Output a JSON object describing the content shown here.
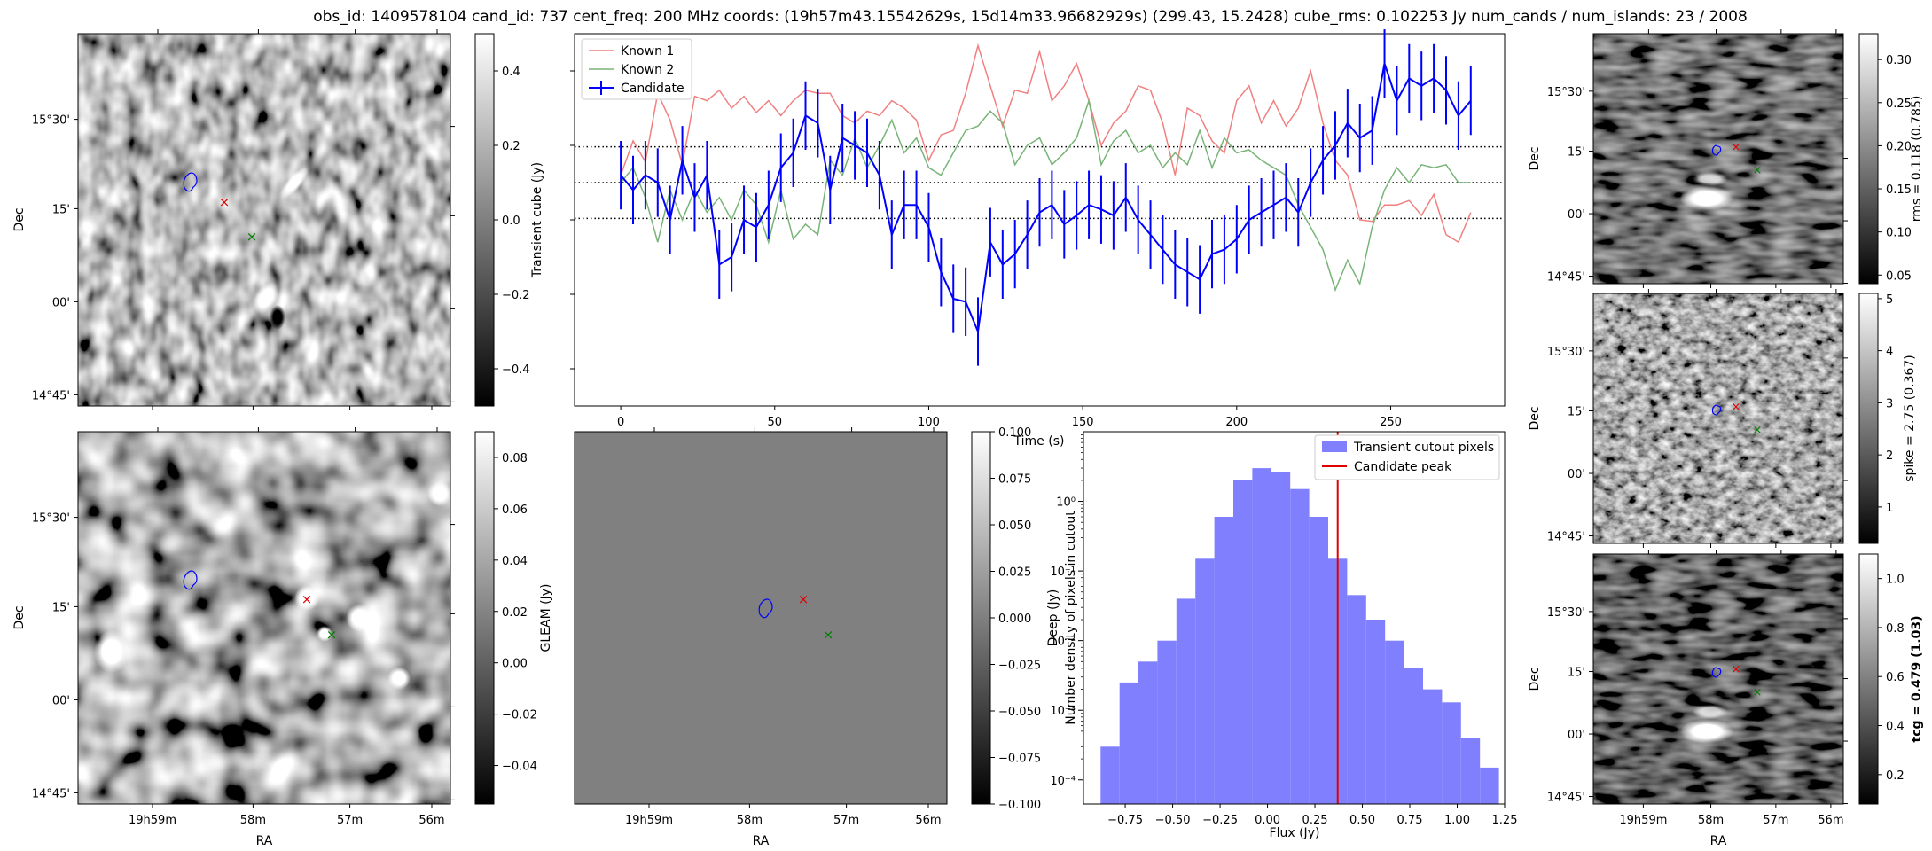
{
  "title": "obs_id: 1409578104 cand_id: 737 cent_freq: 200 MHz coords: (19h57m43.15542629s, 15d14m33.96682929s) (299.43, 15.2428) cube_rms: 0.102253 Jy num_cands / num_islands: 23 / 2008",
  "colors": {
    "known1": "#f08080",
    "known2": "#78b478",
    "candidate": "#0000ff",
    "hist": "#8080ff",
    "peak": "#e00000",
    "red_marker": "#e00000",
    "green_marker": "#008000",
    "blue_contour": "#0000ff"
  },
  "image_axes": {
    "dec_ticks": [
      "15°30'",
      "15'",
      "00'",
      "14°45'"
    ],
    "ra_ticks": [
      "19h59m",
      "58m",
      "57m",
      "56m"
    ],
    "xlabel": "RA",
    "ylabel": "Dec"
  },
  "panels": {
    "transient": {
      "colorbar_label": "Transient cube (Jy)",
      "colorbar_ticks": [
        "0.4",
        "0.2",
        "0.0",
        "−0.2",
        "−0.4"
      ],
      "colorbar_range": [
        -0.5,
        0.5
      ]
    },
    "gleam": {
      "colorbar_label": "GLEAM (Jy)",
      "colorbar_ticks": [
        "0.08",
        "0.06",
        "0.04",
        "0.02",
        "0.00",
        "−0.02",
        "−0.04"
      ],
      "colorbar_range": [
        -0.055,
        0.09
      ]
    },
    "deep": {
      "colorbar_label": "Deep (Jy)",
      "colorbar_ticks": [
        "0.100",
        "0.075",
        "0.050",
        "0.025",
        "0.000",
        "−0.025",
        "−0.050",
        "−0.075",
        "−0.100"
      ],
      "colorbar_range": [
        -0.1,
        0.1
      ]
    },
    "rms": {
      "colorbar_label": "rms = 0.118 (0.785)",
      "colorbar_ticks": [
        "0.30",
        "0.25",
        "0.20",
        "0.15",
        "0.10",
        "0.05"
      ],
      "colorbar_range": [
        0.04,
        0.33
      ]
    },
    "spike": {
      "colorbar_label": "spike = 2.75 (0.367)",
      "colorbar_ticks": [
        "5",
        "4",
        "3",
        "2",
        "1"
      ],
      "colorbar_range": [
        0.3,
        5.1
      ]
    },
    "tcg": {
      "colorbar_label": "tcg = 0.479 (1.03)",
      "colorbar_ticks": [
        "1.0",
        "0.8",
        "0.6",
        "0.4",
        "0.2"
      ],
      "colorbar_range": [
        0.08,
        1.1
      ]
    }
  },
  "chart_data": [
    {
      "type": "line",
      "xlabel": "Time (s)",
      "x_ticks": [
        "0",
        "50",
        "100",
        "150",
        "200",
        "250"
      ],
      "xlim": [
        -15,
        287
      ],
      "ylim": [
        -1.5,
        1.0
      ],
      "legend": [
        "Known 1",
        "Known 2",
        "Candidate"
      ],
      "legend_position": "top-left",
      "hlines": [
        0.24,
        0.0,
        -0.24
      ],
      "x": [
        0,
        4,
        8,
        12,
        16,
        20,
        24,
        28,
        32,
        36,
        40,
        44,
        48,
        52,
        56,
        60,
        64,
        68,
        72,
        76,
        80,
        84,
        88,
        92,
        96,
        100,
        104,
        108,
        112,
        116,
        120,
        124,
        128,
        132,
        136,
        140,
        144,
        148,
        152,
        156,
        160,
        164,
        168,
        172,
        176,
        180,
        184,
        188,
        192,
        196,
        200,
        204,
        208,
        212,
        216,
        220,
        224,
        228,
        232,
        236,
        240,
        244,
        248,
        252,
        256,
        260,
        264,
        268,
        272,
        276
      ],
      "series": [
        {
          "name": "Known 1",
          "values": [
            0.05,
            0.28,
            0.14,
            0.6,
            0.42,
            0.12,
            0.58,
            0.55,
            0.62,
            0.5,
            0.58,
            0.47,
            0.55,
            0.45,
            0.55,
            0.62,
            0.6,
            0.6,
            0.45,
            0.4,
            0.48,
            0.45,
            0.55,
            0.5,
            0.42,
            0.15,
            0.32,
            0.35,
            0.6,
            0.92,
            0.65,
            0.38,
            0.62,
            0.6,
            0.88,
            0.55,
            0.65,
            0.8,
            0.55,
            0.25,
            0.4,
            0.48,
            0.65,
            0.62,
            0.4,
            0.05,
            0.5,
            0.45,
            0.28,
            0.2,
            0.55,
            0.65,
            0.4,
            0.55,
            0.38,
            0.5,
            0.75,
            0.4,
            0.15,
            0.05,
            -0.25,
            -0.26,
            -0.15,
            -0.15,
            -0.12,
            -0.22,
            -0.08,
            -0.35,
            -0.4,
            -0.2
          ]
        },
        {
          "name": "Known 2",
          "values": [
            0.0,
            0.1,
            -0.1,
            -0.4,
            -0.05,
            -0.25,
            -0.05,
            -0.2,
            -0.1,
            -0.25,
            -0.05,
            -0.15,
            -0.4,
            -0.05,
            -0.38,
            -0.28,
            -0.35,
            0.15,
            0.05,
            0.3,
            0.1,
            0.25,
            0.42,
            0.2,
            0.3,
            0.1,
            0.05,
            0.2,
            0.35,
            0.38,
            0.48,
            0.4,
            0.12,
            0.25,
            0.3,
            0.12,
            0.2,
            0.3,
            0.55,
            0.12,
            0.28,
            0.35,
            0.2,
            0.25,
            0.1,
            0.2,
            0.12,
            0.35,
            0.1,
            0.3,
            0.2,
            0.22,
            0.15,
            0.1,
            0.05,
            -0.15,
            -0.3,
            -0.45,
            -0.72,
            -0.52,
            -0.68,
            -0.3,
            -0.05,
            0.1,
            0.0,
            0.12,
            0.1,
            0.12,
            0.0,
            0.0
          ]
        },
        {
          "name": "Candidate",
          "values": [
            0.05,
            -0.05,
            0.05,
            0.0,
            -0.25,
            0.15,
            -0.1,
            0.05,
            -0.55,
            -0.5,
            -0.25,
            -0.3,
            -0.15,
            0.1,
            0.2,
            0.45,
            0.4,
            -0.05,
            0.3,
            0.25,
            0.2,
            0.05,
            -0.35,
            -0.15,
            -0.15,
            -0.3,
            -0.6,
            -0.78,
            -0.8,
            -1.0,
            -0.4,
            -0.55,
            -0.48,
            -0.35,
            -0.2,
            -0.15,
            -0.28,
            -0.22,
            -0.15,
            -0.18,
            -0.22,
            -0.1,
            -0.25,
            -0.35,
            -0.45,
            -0.55,
            -0.6,
            -0.65,
            -0.48,
            -0.45,
            -0.38,
            -0.25,
            -0.2,
            -0.15,
            -0.1,
            -0.2,
            0.0,
            0.15,
            0.25,
            0.4,
            0.3,
            0.35,
            0.8,
            0.55,
            0.7,
            0.65,
            0.7,
            0.62,
            0.45,
            0.55
          ]
        }
      ],
      "candidate_errors": 0.23
    },
    {
      "type": "bar",
      "xlabel": "Flux (Jy)",
      "ylabel": "Number density of pixels in cutout",
      "x_ticks": [
        "−0.75",
        "−0.50",
        "−0.25",
        "0.00",
        "0.25",
        "0.50",
        "0.75",
        "1.00",
        "1.25"
      ],
      "y_ticks": [
        "10⁰",
        "10⁻¹",
        "10⁻²",
        "10⁻³",
        "10⁻⁴"
      ],
      "log_y": true,
      "xlim": [
        -0.97,
        1.25
      ],
      "ylim": [
        4.5e-05,
        10
      ],
      "legend": [
        "Transient cutout pixels",
        "Candidate peak"
      ],
      "legend_position": "top-right",
      "bin_edges": [
        -0.88,
        -0.78,
        -0.68,
        -0.58,
        -0.48,
        -0.38,
        -0.28,
        -0.18,
        -0.08,
        0.02,
        0.12,
        0.22,
        0.32,
        0.42,
        0.52,
        0.62,
        0.72,
        0.82,
        0.92,
        1.02,
        1.12,
        1.22
      ],
      "values": [
        0.0003,
        0.0025,
        0.005,
        0.01,
        0.04,
        0.15,
        0.6,
        2.0,
        3.0,
        2.6,
        1.5,
        0.6,
        0.15,
        0.045,
        0.02,
        0.01,
        0.004,
        0.002,
        0.0013,
        0.0004,
        0.00015
      ],
      "candidate_peak": 0.37
    }
  ]
}
